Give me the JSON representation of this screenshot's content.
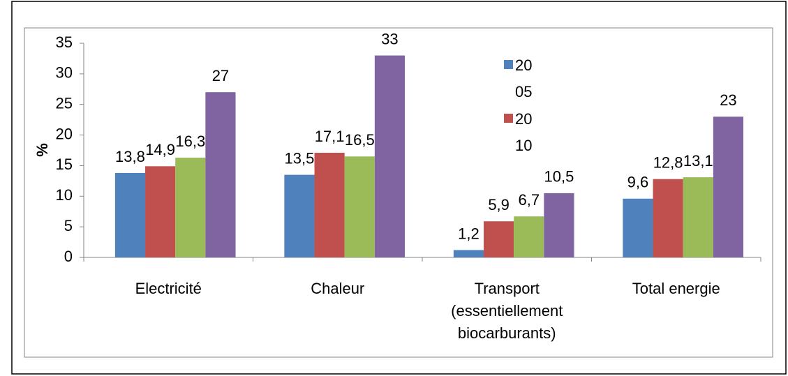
{
  "chart_data": {
    "type": "bar",
    "y_label": "%",
    "categories": [
      "Electricité",
      "Chaleur",
      "Transport (essentiellement biocarburants)",
      "Total energie"
    ],
    "series": [
      {
        "name": "2005",
        "color": "#4f81bd",
        "values": [
          13.8,
          13.5,
          1.2,
          9.6
        ],
        "value_labels": [
          "13,8",
          "13,5",
          "1,2",
          "9,6"
        ]
      },
      {
        "name": "2010",
        "color": "#c0504d",
        "values": [
          14.9,
          17.1,
          5.9,
          12.8
        ],
        "value_labels": [
          "14,9",
          "17,1",
          "5,9",
          "12,8"
        ]
      },
      {
        "color": "#9bbb59",
        "values": [
          16.3,
          16.5,
          6.7,
          13.1
        ],
        "value_labels": [
          "16,3",
          "16,5",
          "6,7",
          "13,1"
        ]
      },
      {
        "color": "#8064a2",
        "values": [
          27,
          33,
          10.5,
          23
        ],
        "value_labels": [
          "27",
          "33",
          "10,5",
          "23"
        ]
      }
    ],
    "ylim": [
      0,
      35
    ],
    "yticks": [
      0,
      5,
      10,
      15,
      20,
      25,
      30,
      35
    ]
  }
}
